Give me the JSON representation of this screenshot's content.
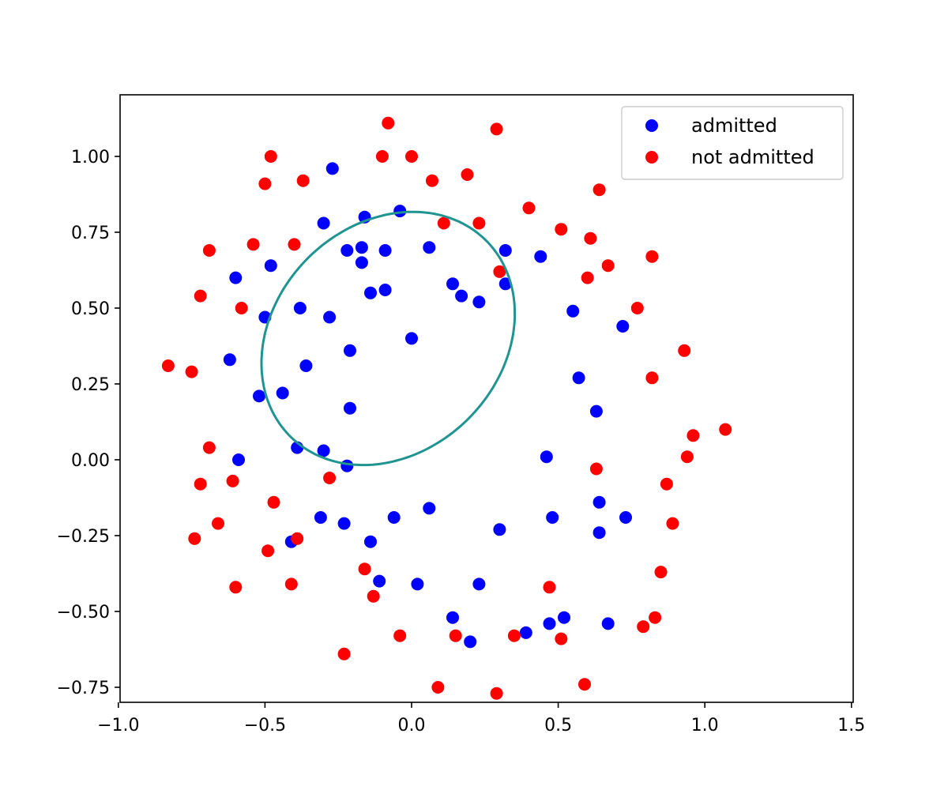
{
  "chart_data": {
    "type": "scatter",
    "title": "",
    "xlabel": "",
    "ylabel": "",
    "xlim": [
      -1.0,
      1.5
    ],
    "ylim": [
      -0.8,
      1.2
    ],
    "xticks": [
      -1.0,
      -0.5,
      0.0,
      0.5,
      1.0,
      1.5
    ],
    "yticks": [
      -0.75,
      -0.5,
      -0.25,
      0.0,
      0.25,
      0.5,
      0.75,
      1.0
    ],
    "x_tick_labels": [
      "−1.0",
      "−0.5",
      "0.0",
      "0.5",
      "1.0",
      "1.5"
    ],
    "y_tick_labels": [
      "−0.75",
      "−0.50",
      "−0.25",
      "0.00",
      "0.25",
      "0.50",
      "0.75",
      "1.00"
    ],
    "grid": false,
    "legend_position": "top-right",
    "series": [
      {
        "name": "admitted",
        "color": "#0000ff",
        "points": [
          [
            -0.27,
            0.96
          ],
          [
            -0.3,
            0.78
          ],
          [
            -0.16,
            0.8
          ],
          [
            -0.04,
            0.82
          ],
          [
            -0.22,
            0.69
          ],
          [
            -0.17,
            0.7
          ],
          [
            -0.17,
            0.65
          ],
          [
            -0.09,
            0.69
          ],
          [
            -0.6,
            0.6
          ],
          [
            -0.48,
            0.64
          ],
          [
            -0.5,
            0.47
          ],
          [
            -0.38,
            0.5
          ],
          [
            -0.28,
            0.47
          ],
          [
            -0.14,
            0.55
          ],
          [
            -0.09,
            0.56
          ],
          [
            0.06,
            0.7
          ],
          [
            0.14,
            0.58
          ],
          [
            0.17,
            0.54
          ],
          [
            0.23,
            0.52
          ],
          [
            0.32,
            0.69
          ],
          [
            0.32,
            0.58
          ],
          [
            0.44,
            0.67
          ],
          [
            -0.21,
            0.36
          ],
          [
            0.0,
            0.4
          ],
          [
            -0.62,
            0.33
          ],
          [
            -0.36,
            0.31
          ],
          [
            -0.52,
            0.21
          ],
          [
            -0.44,
            0.22
          ],
          [
            -0.21,
            0.17
          ],
          [
            0.55,
            0.49
          ],
          [
            0.72,
            0.44
          ],
          [
            0.57,
            0.27
          ],
          [
            0.63,
            0.16
          ],
          [
            -0.59,
            0.0
          ],
          [
            -0.39,
            0.04
          ],
          [
            -0.3,
            0.03
          ],
          [
            -0.22,
            -0.02
          ],
          [
            0.46,
            0.01
          ],
          [
            0.06,
            -0.16
          ],
          [
            -0.31,
            -0.19
          ],
          [
            -0.23,
            -0.21
          ],
          [
            -0.06,
            -0.19
          ],
          [
            -0.14,
            -0.27
          ],
          [
            -0.41,
            -0.27
          ],
          [
            0.3,
            -0.23
          ],
          [
            0.48,
            -0.19
          ],
          [
            0.64,
            -0.14
          ],
          [
            0.73,
            -0.19
          ],
          [
            0.64,
            -0.24
          ],
          [
            -0.11,
            -0.4
          ],
          [
            0.02,
            -0.41
          ],
          [
            0.23,
            -0.41
          ],
          [
            0.14,
            -0.52
          ],
          [
            0.2,
            -0.6
          ],
          [
            0.39,
            -0.57
          ],
          [
            0.47,
            -0.54
          ],
          [
            0.52,
            -0.52
          ],
          [
            0.67,
            -0.54
          ]
        ]
      },
      {
        "name": "not admitted",
        "color": "#ff0000",
        "points": [
          [
            -0.08,
            1.11
          ],
          [
            0.29,
            1.09
          ],
          [
            -0.48,
            1.0
          ],
          [
            -0.1,
            1.0
          ],
          [
            0.0,
            1.0
          ],
          [
            -0.5,
            0.91
          ],
          [
            -0.37,
            0.92
          ],
          [
            0.07,
            0.92
          ],
          [
            0.19,
            0.94
          ],
          [
            0.64,
            0.89
          ],
          [
            0.4,
            0.83
          ],
          [
            0.11,
            0.78
          ],
          [
            0.23,
            0.78
          ],
          [
            0.51,
            0.76
          ],
          [
            0.61,
            0.73
          ],
          [
            -0.69,
            0.69
          ],
          [
            -0.54,
            0.71
          ],
          [
            -0.4,
            0.71
          ],
          [
            0.82,
            0.67
          ],
          [
            0.3,
            0.62
          ],
          [
            0.6,
            0.6
          ],
          [
            0.67,
            0.64
          ],
          [
            -0.72,
            0.54
          ],
          [
            -0.58,
            0.5
          ],
          [
            0.77,
            0.5
          ],
          [
            -0.83,
            0.31
          ],
          [
            -0.75,
            0.29
          ],
          [
            0.93,
            0.36
          ],
          [
            0.82,
            0.27
          ],
          [
            -0.69,
            0.04
          ],
          [
            1.07,
            0.1
          ],
          [
            0.96,
            0.08
          ],
          [
            0.94,
            0.01
          ],
          [
            -0.72,
            -0.08
          ],
          [
            -0.61,
            -0.07
          ],
          [
            -0.28,
            -0.06
          ],
          [
            0.63,
            -0.03
          ],
          [
            0.87,
            -0.08
          ],
          [
            -0.47,
            -0.14
          ],
          [
            -0.66,
            -0.21
          ],
          [
            0.89,
            -0.21
          ],
          [
            -0.74,
            -0.26
          ],
          [
            -0.39,
            -0.26
          ],
          [
            -0.49,
            -0.3
          ],
          [
            -0.16,
            -0.36
          ],
          [
            0.85,
            -0.37
          ],
          [
            -0.6,
            -0.42
          ],
          [
            -0.41,
            -0.41
          ],
          [
            -0.13,
            -0.45
          ],
          [
            0.47,
            -0.42
          ],
          [
            -0.04,
            -0.58
          ],
          [
            0.15,
            -0.58
          ],
          [
            0.35,
            -0.58
          ],
          [
            0.51,
            -0.59
          ],
          [
            0.79,
            -0.55
          ],
          [
            0.83,
            -0.52
          ],
          [
            -0.23,
            -0.64
          ],
          [
            0.09,
            -0.75
          ],
          [
            0.29,
            -0.77
          ],
          [
            0.59,
            -0.74
          ]
        ]
      }
    ],
    "boundary": {
      "name": "decision boundary",
      "color": "#1f9490",
      "center": [
        -0.08,
        0.4
      ],
      "rx": 0.465,
      "ry": 0.38,
      "rotation_deg": 40
    }
  }
}
